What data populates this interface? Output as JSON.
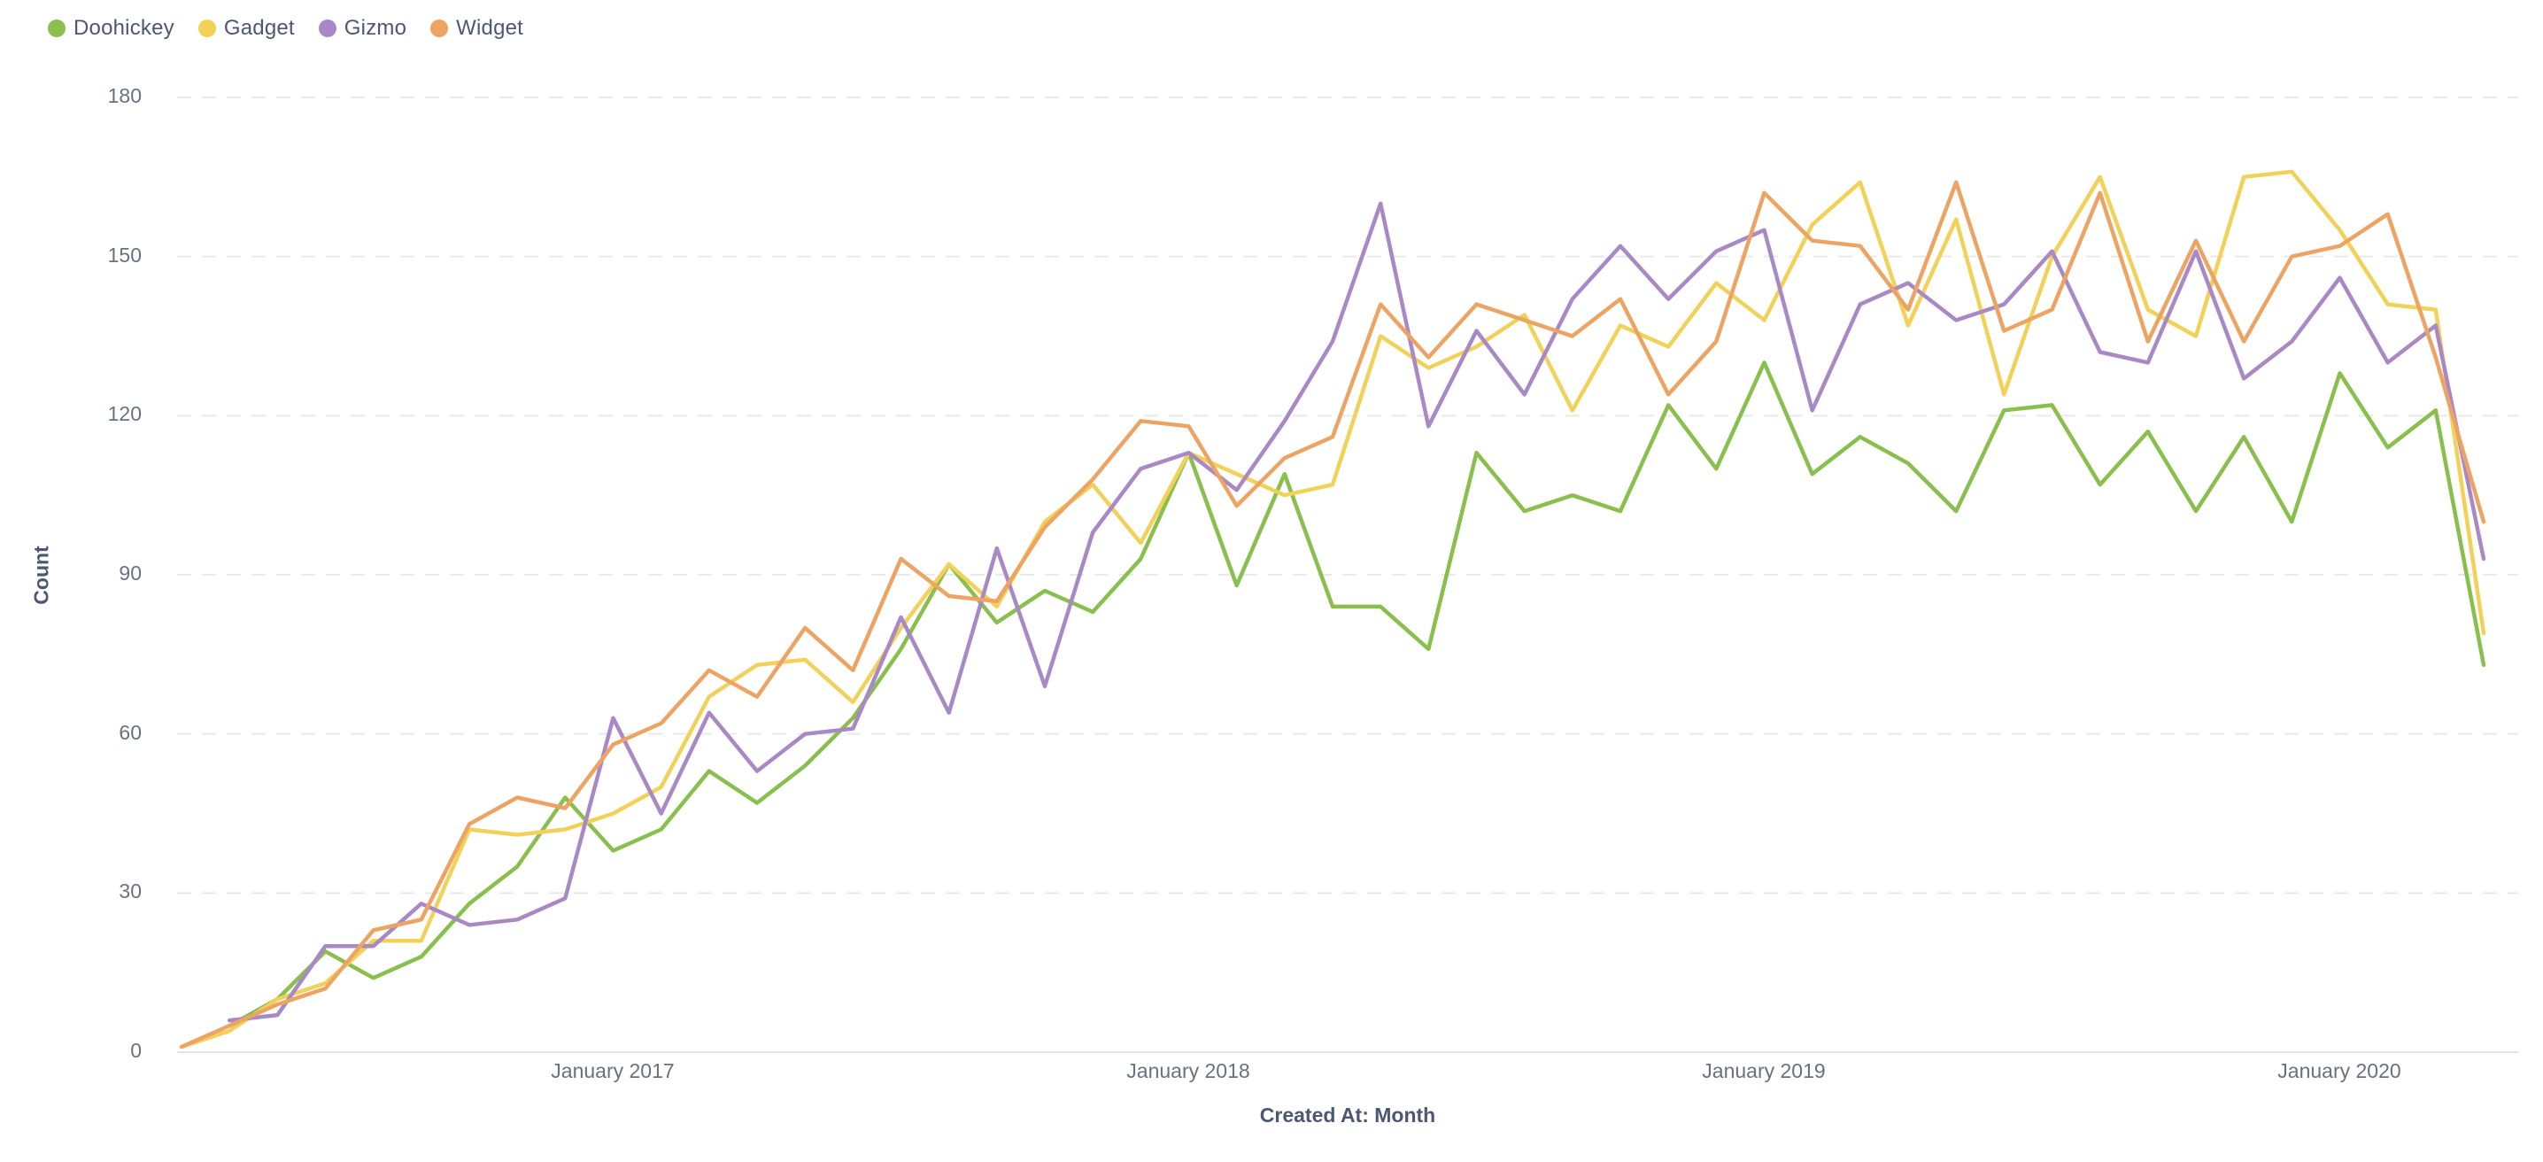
{
  "legend": {
    "items": [
      {
        "label": "Doohickey",
        "color": "#88BF4D"
      },
      {
        "label": "Gadget",
        "color": "#F2D158"
      },
      {
        "label": "Gizmo",
        "color": "#A989C5"
      },
      {
        "label": "Widget",
        "color": "#EDA463"
      }
    ]
  },
  "y_axis": {
    "title": "Count",
    "ticks": [
      0,
      30,
      60,
      90,
      120,
      150,
      180
    ]
  },
  "x_axis": {
    "title": "Created At: Month",
    "ticks": [
      "January 2017",
      "January 2018",
      "January 2019",
      "January 2020"
    ]
  },
  "chart_data": {
    "type": "line",
    "title": "",
    "xlabel": "Created At: Month",
    "ylabel": "Count",
    "ylim": [
      0,
      180
    ],
    "grid": "horizontal-dashed",
    "legend_position": "top-left",
    "x": [
      "Apr 2016",
      "May 2016",
      "Jun 2016",
      "Jul 2016",
      "Aug 2016",
      "Sep 2016",
      "Oct 2016",
      "Nov 2016",
      "Dec 2016",
      "Jan 2017",
      "Feb 2017",
      "Mar 2017",
      "Apr 2017",
      "May 2017",
      "Jun 2017",
      "Jul 2017",
      "Aug 2017",
      "Sep 2017",
      "Oct 2017",
      "Nov 2017",
      "Dec 2017",
      "Jan 2018",
      "Feb 2018",
      "Mar 2018",
      "Apr 2018",
      "May 2018",
      "Jun 2018",
      "Jul 2018",
      "Aug 2018",
      "Sep 2018",
      "Oct 2018",
      "Nov 2018",
      "Dec 2018",
      "Jan 2019",
      "Feb 2019",
      "Mar 2019",
      "Apr 2019",
      "May 2019",
      "Jun 2019",
      "Jul 2019",
      "Aug 2019",
      "Sep 2019",
      "Oct 2019",
      "Nov 2019",
      "Dec 2019",
      "Jan 2020",
      "Feb 2020",
      "Mar 2020",
      "Apr 2020"
    ],
    "series": [
      {
        "name": "Doohickey",
        "color": "#88BF4D",
        "values": [
          null,
          5,
          10,
          19,
          14,
          18,
          28,
          35,
          48,
          38,
          42,
          53,
          47,
          54,
          63,
          76,
          92,
          81,
          87,
          83,
          93,
          113,
          88,
          109,
          84,
          84,
          76,
          113,
          102,
          105,
          102,
          122,
          110,
          130,
          109,
          116,
          111,
          102,
          121,
          122,
          107,
          117,
          102,
          116,
          100,
          128,
          114,
          121,
          73
        ]
      },
      {
        "name": "Gadget",
        "color": "#F2D158",
        "values": [
          1,
          4,
          10,
          13,
          21,
          21,
          42,
          41,
          42,
          45,
          50,
          67,
          73,
          74,
          66,
          80,
          92,
          84,
          100,
          107,
          96,
          113,
          109,
          105,
          107,
          135,
          129,
          133,
          139,
          121,
          137,
          133,
          145,
          138,
          156,
          164,
          137,
          157,
          124,
          150,
          165,
          140,
          135,
          165,
          166,
          155,
          141,
          140,
          79
        ]
      },
      {
        "name": "Gizmo",
        "color": "#A989C5",
        "values": [
          null,
          6,
          7,
          20,
          20,
          28,
          24,
          25,
          29,
          63,
          45,
          64,
          53,
          60,
          61,
          82,
          64,
          95,
          69,
          98,
          110,
          113,
          106,
          119,
          134,
          160,
          118,
          136,
          124,
          142,
          152,
          142,
          151,
          155,
          121,
          141,
          145,
          138,
          141,
          151,
          132,
          130,
          151,
          127,
          134,
          146,
          130,
          137,
          93
        ]
      },
      {
        "name": "Widget",
        "color": "#EDA463",
        "values": [
          1,
          5,
          9,
          12,
          23,
          25,
          43,
          48,
          46,
          58,
          62,
          72,
          67,
          80,
          72,
          93,
          86,
          85,
          99,
          108,
          119,
          118,
          103,
          112,
          116,
          141,
          131,
          141,
          138,
          135,
          142,
          124,
          134,
          162,
          153,
          152,
          140,
          164,
          136,
          140,
          162,
          134,
          153,
          134,
          150,
          152,
          158,
          131,
          100
        ]
      }
    ]
  },
  "layout_colors": {
    "grid": "#e9e9e9",
    "axis_line": "#e3e3e5",
    "tick_text": "#68727f",
    "title_text": "#4c5773"
  }
}
